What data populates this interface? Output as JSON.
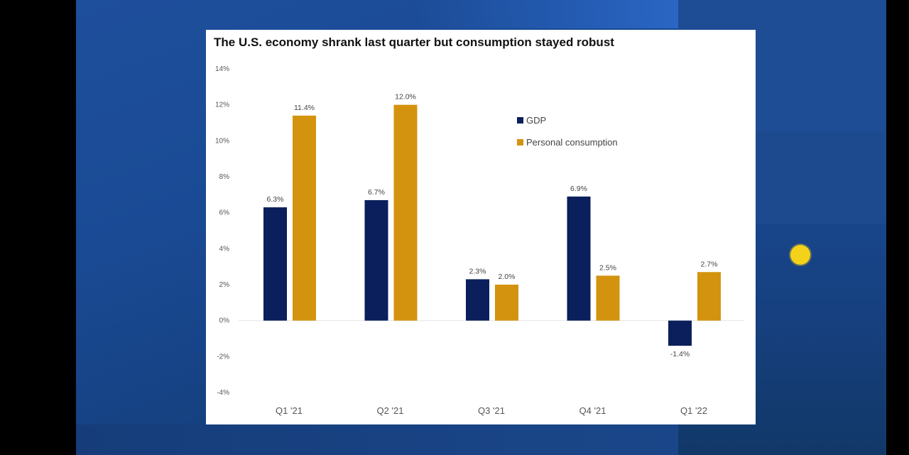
{
  "colors": {
    "gdp": "#0a1f5c",
    "consumption": "#d4930e",
    "background_blue": "#1a4a94"
  },
  "chart_data": {
    "type": "bar",
    "title": "The U.S. economy shrank last quarter but consumption stayed robust",
    "categories": [
      "Q1 '21",
      "Q2 '21",
      "Q3 '21",
      "Q4 '21",
      "Q1 '22"
    ],
    "series": [
      {
        "name": "GDP",
        "values": [
          6.3,
          6.7,
          2.3,
          6.9,
          -1.4
        ],
        "labels": [
          "6.3%",
          "6.7%",
          "2.3%",
          "6.9%",
          "-1.4%"
        ]
      },
      {
        "name": "Personal consumption",
        "values": [
          11.4,
          12.0,
          2.0,
          2.5,
          2.7
        ],
        "labels": [
          "11.4%",
          "12.0%",
          "2.0%",
          "2.5%",
          "2.7%"
        ]
      }
    ],
    "ylim": [
      -4,
      14
    ],
    "yticks": [
      14,
      12,
      10,
      8,
      6,
      4,
      2,
      0,
      -2,
      -4
    ],
    "ytick_labels": [
      "14%",
      "12%",
      "10%",
      "8%",
      "6%",
      "4%",
      "2%",
      "0%",
      "-2%",
      "-4%"
    ],
    "xlabel": "",
    "ylabel": "",
    "legend_position": "top-right inside",
    "grid": false
  }
}
